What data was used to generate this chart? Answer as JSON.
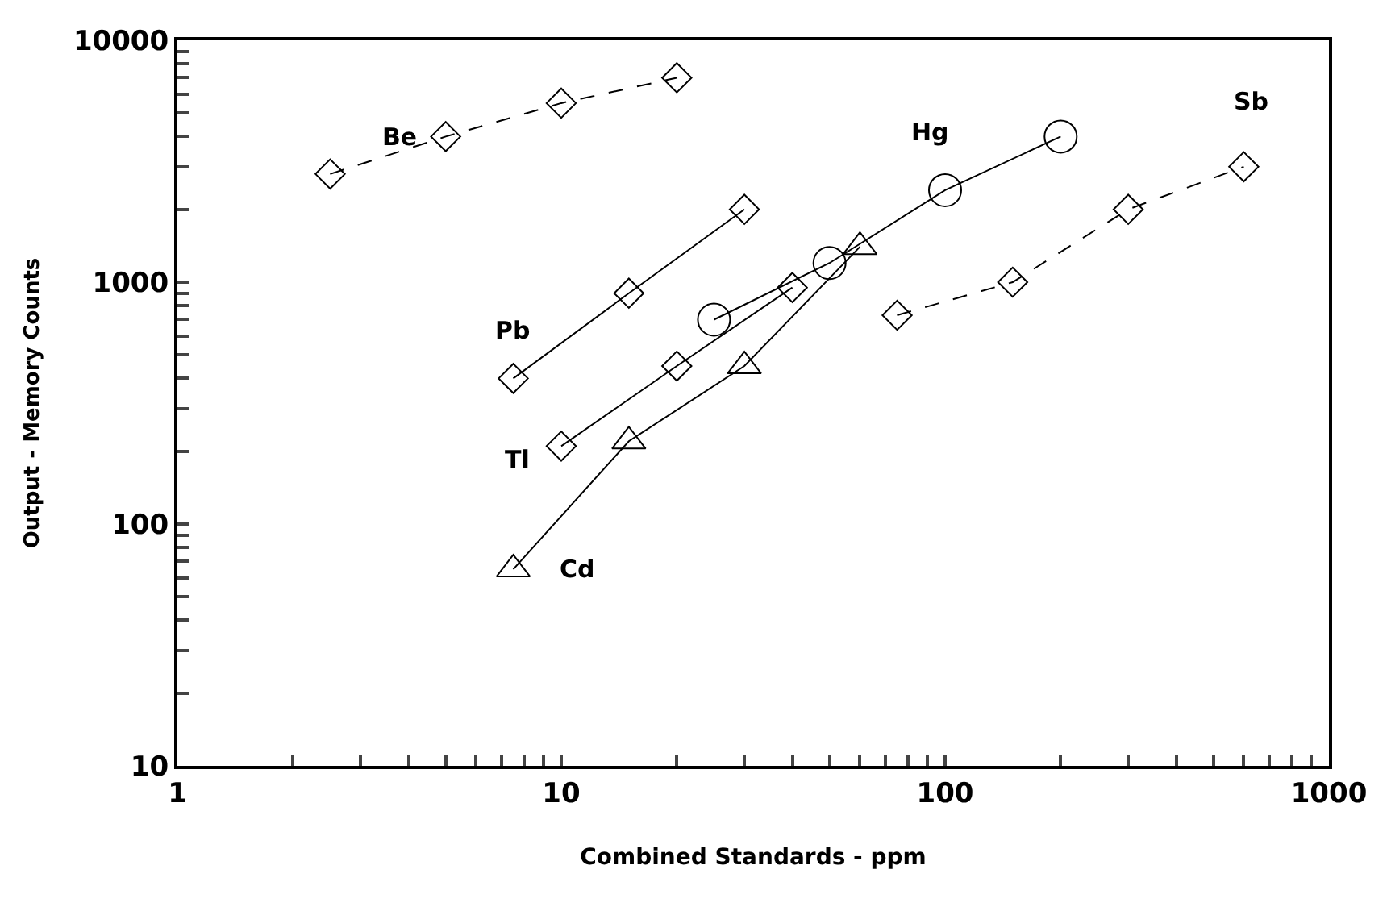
{
  "chart_data": {
    "type": "line",
    "xlabel": "Combined Standards - ppm",
    "ylabel": "Output - Memory Counts",
    "log": "xy",
    "grid": false,
    "xlim": [
      1,
      1000
    ],
    "ylim": [
      10,
      10000
    ],
    "xticks": [
      1,
      {
        "value": 2,
        "label": null
      },
      {
        "value": 3,
        "label": null
      },
      {
        "value": 4,
        "label": null
      },
      {
        "value": 5,
        "label": null
      },
      {
        "value": 6,
        "label": null
      },
      {
        "value": 7,
        "label": null
      },
      {
        "value": 8,
        "label": null
      },
      {
        "value": 9,
        "label": null
      },
      10,
      {
        "value": 20,
        "label": null
      },
      {
        "value": 30,
        "label": null
      },
      {
        "value": 40,
        "label": null
      },
      {
        "value": 50,
        "label": null
      },
      {
        "value": 60,
        "label": null
      },
      {
        "value": 70,
        "label": null
      },
      {
        "value": 80,
        "label": null
      },
      {
        "value": 90,
        "label": null
      },
      100,
      {
        "value": 200,
        "label": null
      },
      {
        "value": 300,
        "label": null
      },
      {
        "value": 400,
        "label": null
      },
      {
        "value": 500,
        "label": null
      },
      {
        "value": 600,
        "label": null
      },
      {
        "value": 700,
        "label": null
      },
      {
        "value": 800,
        "label": null
      },
      {
        "value": 900,
        "label": null
      },
      1000
    ],
    "yticks": [
      10,
      {
        "value": 20,
        "label": null
      },
      {
        "value": 30,
        "label": null
      },
      {
        "value": 40,
        "label": null
      },
      {
        "value": 50,
        "label": null
      },
      {
        "value": 60,
        "label": null
      },
      {
        "value": 70,
        "label": null
      },
      {
        "value": 80,
        "label": null
      },
      {
        "value": 90,
        "label": null
      },
      100,
      {
        "value": 200,
        "label": null
      },
      {
        "value": 300,
        "label": null
      },
      {
        "value": 400,
        "label": null
      },
      {
        "value": 500,
        "label": null
      },
      {
        "value": 600,
        "label": null
      },
      {
        "value": 700,
        "label": null
      },
      {
        "value": 800,
        "label": null
      },
      {
        "value": 900,
        "label": null
      },
      1000,
      {
        "value": 2000,
        "label": null
      },
      {
        "value": 3000,
        "label": null
      },
      {
        "value": 4000,
        "label": null
      },
      {
        "value": 5000,
        "label": null
      },
      {
        "value": 6000,
        "label": null
      },
      {
        "value": 7000,
        "label": null
      },
      {
        "value": 8000,
        "label": null
      },
      {
        "value": 9000,
        "label": null
      },
      10000
    ],
    "series": [
      {
        "name": "Be",
        "color": "#000000",
        "marker": "diamond",
        "line_style": "dashed",
        "x": [
          2.5,
          5,
          10,
          20
        ],
        "values": [
          2800,
          4000,
          5500,
          7000
        ]
      },
      {
        "name": "Pb",
        "color": "#000000",
        "marker": "diamond",
        "line_style": "solid",
        "x": [
          7.5,
          15,
          30
        ],
        "values": [
          400,
          900,
          2000
        ]
      },
      {
        "name": "Tl",
        "color": "#000000",
        "marker": "diamond",
        "line_style": "solid",
        "x": [
          10,
          20,
          40
        ],
        "values": [
          210,
          450,
          950
        ]
      },
      {
        "name": "Hg",
        "color": "#000000",
        "marker": "circle",
        "line_style": "solid",
        "x": [
          25,
          50,
          100,
          200
        ],
        "values": [
          700,
          1200,
          2400,
          4000
        ]
      },
      {
        "name": "Cd",
        "color": "#000000",
        "marker": "triangle",
        "line_style": "solid",
        "x": [
          7.5,
          15,
          30,
          60
        ],
        "values": [
          65,
          220,
          450,
          1400
        ]
      },
      {
        "name": "Sb",
        "color": "#000000",
        "marker": "diamond",
        "line_style": "dashed",
        "x": [
          75,
          150,
          300,
          600
        ],
        "values": [
          730,
          1000,
          2000,
          3000
        ]
      }
    ]
  }
}
